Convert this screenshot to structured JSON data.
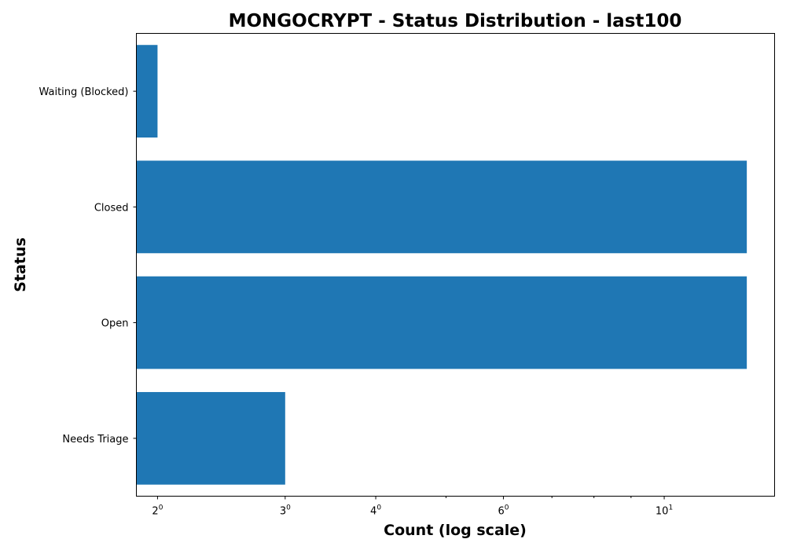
{
  "chart_data": {
    "type": "bar",
    "orientation": "horizontal",
    "title": "MONGOCRYPT - Status Distribution - last100",
    "xlabel": "Count (log scale)",
    "ylabel": "Status",
    "xscale": "log",
    "xlim": [
      1.87,
      14.2
    ],
    "categories": [
      "Needs Triage",
      "Open",
      "Closed",
      "Waiting (Blocked)"
    ],
    "values": [
      3,
      13,
      13,
      2
    ],
    "bar_color": "#1f77b4",
    "grid": false,
    "x_major_ticks": [
      {
        "value": 2,
        "base": "2",
        "exp": "0"
      },
      {
        "value": 3,
        "base": "3",
        "exp": "0"
      },
      {
        "value": 4,
        "base": "4",
        "exp": "0"
      },
      {
        "value": 6,
        "base": "6",
        "exp": "0"
      },
      {
        "value": 10,
        "base": "10",
        "exp": "1"
      }
    ],
    "x_minor_ticks": [
      5,
      7,
      8,
      9
    ]
  }
}
